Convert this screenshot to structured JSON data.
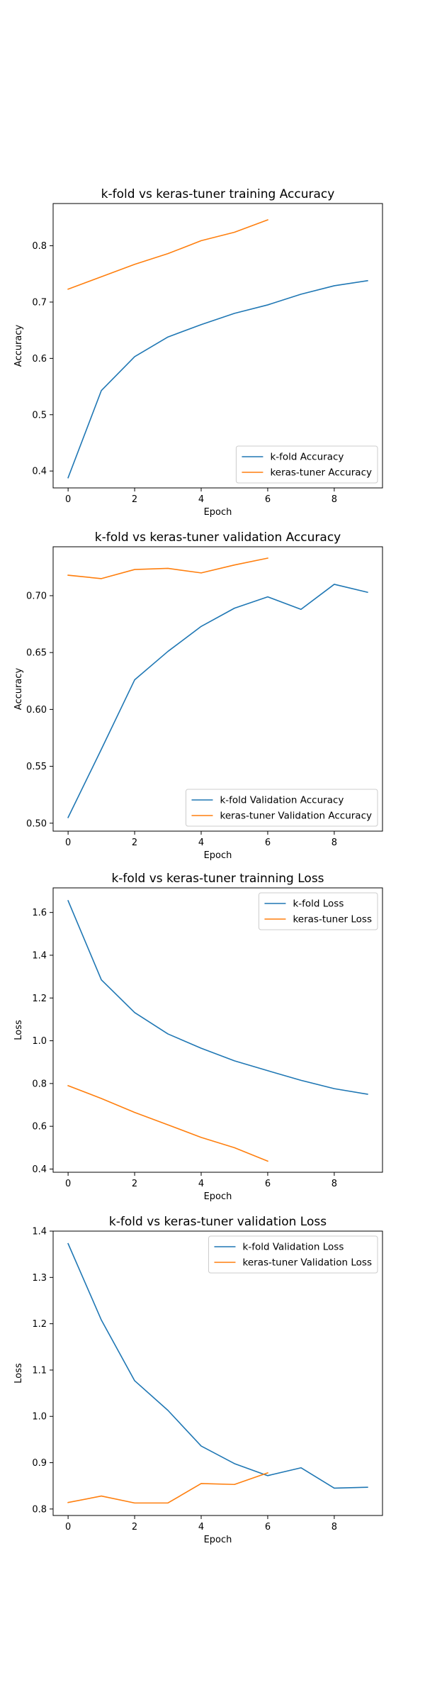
{
  "colors": {
    "blue": "#1f77b4",
    "orange": "#ff7f0e"
  },
  "chart_data": [
    {
      "type": "line",
      "title": "k-fold vs keras-tuner training Accuracy",
      "xlabel": "Epoch",
      "ylabel": "Accuracy",
      "xlim": [
        -0.45,
        9.45
      ],
      "ylim": [
        0.37,
        0.875
      ],
      "xticks": [
        0,
        2,
        4,
        6,
        8
      ],
      "xtick_labels": [
        "0",
        "2",
        "4",
        "6",
        "8"
      ],
      "yticks": [
        0.4,
        0.5,
        0.6,
        0.7,
        0.8
      ],
      "ytick_labels": [
        "0.4",
        "0.5",
        "0.6",
        "0.7",
        "0.8"
      ],
      "legend_loc": "lower-right",
      "series": [
        {
          "name": "k-fold Accuracy",
          "color": "#1f77b4",
          "x": [
            0,
            1,
            2,
            3,
            4,
            5,
            6,
            7,
            8,
            9
          ],
          "values": [
            0.388,
            0.543,
            0.603,
            0.638,
            0.66,
            0.68,
            0.695,
            0.714,
            0.729,
            0.738
          ]
        },
        {
          "name": "keras-tuner Accuracy",
          "color": "#ff7f0e",
          "x": [
            0,
            1,
            2,
            3,
            4,
            5,
            6
          ],
          "values": [
            0.723,
            0.745,
            0.767,
            0.786,
            0.809,
            0.824,
            0.846
          ]
        }
      ]
    },
    {
      "type": "line",
      "title": "k-fold vs keras-tuner validation Accuracy",
      "xlabel": "Epoch",
      "ylabel": "Accuracy",
      "xlim": [
        -0.45,
        9.45
      ],
      "ylim": [
        0.493,
        0.743
      ],
      "xticks": [
        0,
        2,
        4,
        6,
        8
      ],
      "xtick_labels": [
        "0",
        "2",
        "4",
        "6",
        "8"
      ],
      "yticks": [
        0.5,
        0.55,
        0.6,
        0.65,
        0.7
      ],
      "ytick_labels": [
        "0.50",
        "0.55",
        "0.60",
        "0.65",
        "0.70"
      ],
      "legend_loc": "lower-right",
      "series": [
        {
          "name": "k-fold Validation Accuracy",
          "color": "#1f77b4",
          "x": [
            0,
            1,
            2,
            3,
            4,
            5,
            6,
            7,
            8,
            9
          ],
          "values": [
            0.505,
            0.565,
            0.626,
            0.651,
            0.673,
            0.689,
            0.699,
            0.688,
            0.71,
            0.703
          ]
        },
        {
          "name": "keras-tuner Validation Accuracy",
          "color": "#ff7f0e",
          "x": [
            0,
            1,
            2,
            3,
            4,
            5,
            6
          ],
          "values": [
            0.718,
            0.715,
            0.723,
            0.724,
            0.72,
            0.727,
            0.733
          ]
        }
      ]
    },
    {
      "type": "line",
      "title": "k-fold vs keras-tuner trainning Loss",
      "xlabel": "Epoch",
      "ylabel": "Loss",
      "xlim": [
        -0.45,
        9.45
      ],
      "ylim": [
        0.385,
        1.715
      ],
      "xticks": [
        0,
        2,
        4,
        6,
        8
      ],
      "xtick_labels": [
        "0",
        "2",
        "4",
        "6",
        "8"
      ],
      "yticks": [
        0.4,
        0.6,
        0.8,
        1.0,
        1.2,
        1.4,
        1.6
      ],
      "ytick_labels": [
        "0.4",
        "0.6",
        "0.8",
        "1.0",
        "1.2",
        "1.4",
        "1.6"
      ],
      "legend_loc": "upper-right",
      "series": [
        {
          "name": "k-fold Loss",
          "color": "#1f77b4",
          "x": [
            0,
            1,
            2,
            3,
            4,
            5,
            6,
            7,
            8,
            9
          ],
          "values": [
            1.655,
            1.285,
            1.132,
            1.032,
            0.965,
            0.906,
            0.86,
            0.815,
            0.776,
            0.75
          ]
        },
        {
          "name": "keras-tuner Loss",
          "color": "#ff7f0e",
          "x": [
            0,
            1,
            2,
            3,
            4,
            5,
            6
          ],
          "values": [
            0.79,
            0.73,
            0.665,
            0.607,
            0.548,
            0.5,
            0.437
          ]
        }
      ]
    },
    {
      "type": "line",
      "title": "k-fold vs keras-tuner validation Loss",
      "xlabel": "Epoch",
      "ylabel": "Loss",
      "xlim": [
        -0.45,
        9.45
      ],
      "ylim": [
        0.786,
        1.4
      ],
      "xticks": [
        0,
        2,
        4,
        6,
        8
      ],
      "xtick_labels": [
        "0",
        "2",
        "4",
        "6",
        "8"
      ],
      "yticks": [
        0.8,
        0.9,
        1.0,
        1.1,
        1.2,
        1.3,
        1.4
      ],
      "ytick_labels": [
        "0.8",
        "0.9",
        "1.0",
        "1.1",
        "1.2",
        "1.3",
        "1.4"
      ],
      "legend_loc": "upper-right",
      "series": [
        {
          "name": "k-fold Validation Loss",
          "color": "#1f77b4",
          "x": [
            0,
            1,
            2,
            3,
            4,
            5,
            6,
            7,
            8,
            9
          ],
          "values": [
            1.373,
            1.208,
            1.077,
            1.013,
            0.936,
            0.898,
            0.872,
            0.889,
            0.845,
            0.847
          ]
        },
        {
          "name": "keras-tuner Validation Loss",
          "color": "#ff7f0e",
          "x": [
            0,
            1,
            2,
            3,
            4,
            5,
            6
          ],
          "values": [
            0.814,
            0.828,
            0.813,
            0.813,
            0.855,
            0.853,
            0.878
          ]
        }
      ]
    }
  ]
}
